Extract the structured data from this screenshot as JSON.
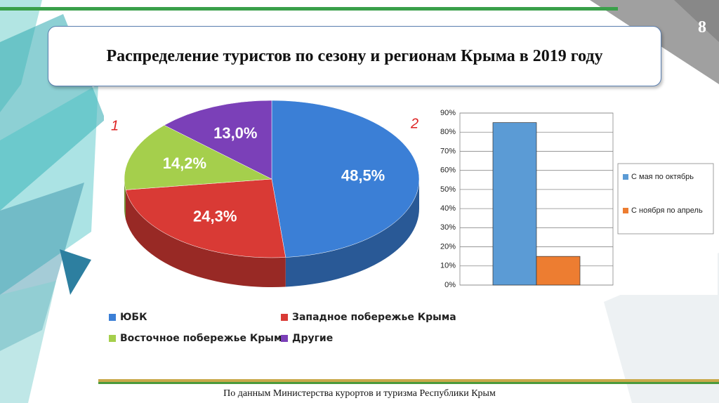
{
  "slide_number": "8",
  "title": "Распределение туристов по сезону и регионам Крыма в 2019 году",
  "footer": "По данным Министерства курортов и туризма Республики Крым",
  "chart_data": [
    {
      "type": "pie",
      "label": "1",
      "categories": [
        "ЮБК",
        "Западное побережье Крыма",
        "Восточное побережье Крыма",
        "Другие"
      ],
      "values": [
        48.5,
        24.3,
        14.2,
        13.0
      ],
      "value_labels": [
        "48,5%",
        "24,3%",
        "14,2%",
        "13,0%"
      ],
      "colors": [
        "#3b7fd6",
        "#d93a35",
        "#a5cf4c",
        "#7b40b8"
      ]
    },
    {
      "type": "bar",
      "label": "2",
      "categories": [
        null
      ],
      "series": [
        {
          "name": "С мая по октябрь",
          "color": "#5b9bd5",
          "values": [
            85
          ]
        },
        {
          "name": "С ноября по апрель",
          "color": "#ed7d31",
          "values": [
            15
          ]
        }
      ],
      "ylim": [
        0,
        90
      ],
      "yticks": [
        {
          "value": 0,
          "label": "0%"
        },
        {
          "value": 10,
          "label": "10%"
        },
        {
          "value": 20,
          "label": "20%"
        },
        {
          "value": 30,
          "label": "30%"
        },
        {
          "value": 40,
          "label": "40%"
        },
        {
          "value": 50,
          "label": "50%"
        },
        {
          "value": 60,
          "label": "60%"
        },
        {
          "value": 70,
          "label": "70%"
        },
        {
          "value": 80,
          "label": "80%"
        },
        {
          "value": 90,
          "label": "90%"
        }
      ],
      "grid": true
    }
  ]
}
